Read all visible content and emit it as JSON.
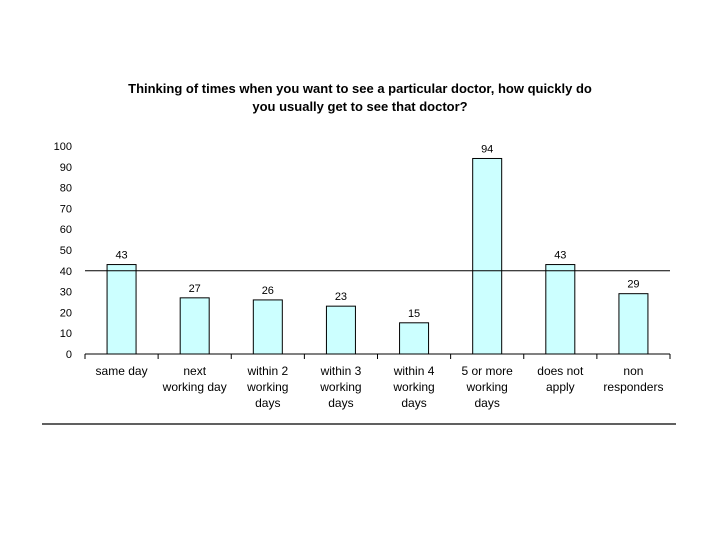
{
  "chart_data": {
    "type": "bar",
    "title_lines": [
      "Thinking of times when you want to see a particular doctor, how quickly do",
      "you usually get to see that doctor?"
    ],
    "categories": [
      [
        "same day"
      ],
      [
        "next",
        "working day"
      ],
      [
        "within 2",
        "working",
        "days"
      ],
      [
        "within 3",
        "working",
        "days"
      ],
      [
        "within 4",
        "working",
        "days"
      ],
      [
        "5 or more",
        "working",
        "days"
      ],
      [
        "does not",
        "apply"
      ],
      [
        "non",
        "responders"
      ]
    ],
    "values": [
      43,
      27,
      26,
      23,
      15,
      94,
      43,
      29
    ],
    "ylim": [
      0,
      100
    ],
    "yticks": [
      0,
      10,
      20,
      30,
      40,
      50,
      60,
      70,
      80,
      90,
      100
    ],
    "reference_line": 40,
    "grid": false,
    "legend": "none",
    "colors": {
      "bar_fill": "#ccffff",
      "bar_stroke": "#000000",
      "axis": "#000000"
    }
  }
}
